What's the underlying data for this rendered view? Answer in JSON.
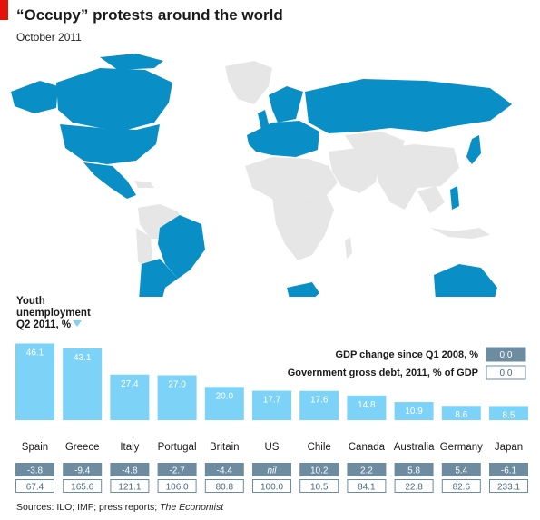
{
  "header": {
    "title": "“Occupy” protests around the world",
    "subtitle": "October 2011"
  },
  "source": {
    "text": "Sources: ILO; IMF; press reports; ",
    "publication": "The Economist"
  },
  "map": {
    "protest_color": "#0a8ec6",
    "other_color": "#e6e6e6"
  },
  "chart_data": {
    "type": "bar",
    "ylabel": "Youth unemployment Q2 2011, %",
    "ylabel_lines": [
      "Youth",
      "unemployment",
      "Q2 2011, %"
    ],
    "bar_color": "#7dd3f7",
    "categories": [
      "Spain",
      "Greece",
      "Italy",
      "Portugal",
      "Britain",
      "US",
      "Chile",
      "Canada",
      "Australia",
      "Germany",
      "Japan"
    ],
    "series": [
      {
        "name": "Youth unemployment Q2 2011, %",
        "values": [
          46.1,
          43.1,
          27.4,
          27.0,
          20.0,
          17.7,
          17.6,
          14.8,
          10.9,
          8.6,
          8.5
        ],
        "labels": [
          "46.1",
          "43.1",
          "27.4",
          "27.0",
          "20.0",
          "17.7",
          "17.6",
          "14.8",
          "10.9",
          "8.6",
          "8.5"
        ]
      },
      {
        "name": "GDP change since Q1 2008, %",
        "values": [
          -3.8,
          -9.4,
          -4.8,
          -2.7,
          -4.4,
          null,
          10.2,
          2.2,
          5.8,
          5.4,
          -6.1
        ],
        "labels": [
          "-3.8",
          "-9.4",
          "-4.8",
          "-2.7",
          "-4.4",
          "nil",
          "10.2",
          "2.2",
          "5.8",
          "5.4",
          "-6.1"
        ],
        "color": "#6d8ca0"
      },
      {
        "name": "Government gross debt, 2011, % of GDP",
        "values": [
          67.4,
          165.6,
          121.1,
          106.0,
          80.8,
          100.0,
          10.5,
          84.1,
          22.8,
          82.6,
          233.1
        ],
        "labels": [
          "67.4",
          "165.6",
          "121.1",
          "106.0",
          "80.8",
          "100.0",
          "10.5",
          "84.1",
          "22.8",
          "82.6",
          "233.1"
        ],
        "color": "#ffffff"
      }
    ],
    "legend": [
      {
        "label": "GDP change since Q1 2008, %",
        "swatch_text": "0.0",
        "style": "filled"
      },
      {
        "label": "Government gross debt, 2011, % of GDP",
        "swatch_text": "0.0",
        "style": "outlined"
      }
    ],
    "legend_position": "top-right",
    "grid": false
  }
}
